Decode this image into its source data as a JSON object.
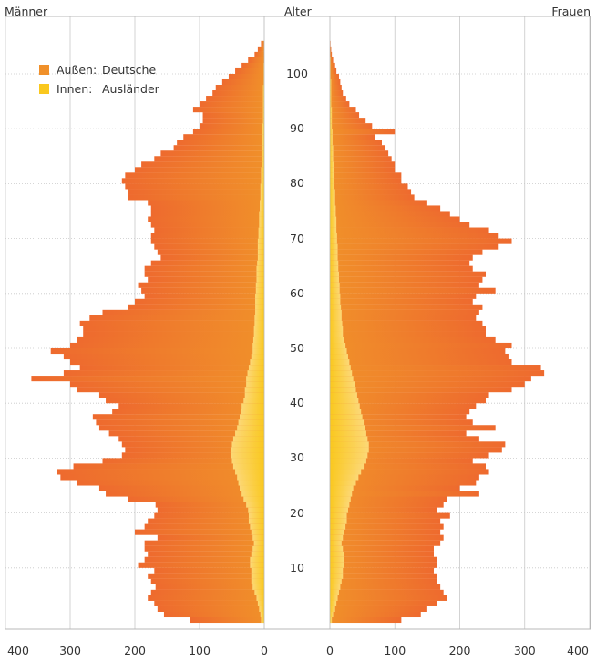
{
  "header": {
    "left_label": "Männer",
    "center_label": "Alter",
    "right_label": "Frauen"
  },
  "legend": {
    "outer_label": "Außen:",
    "outer_name": "Deutsche",
    "inner_label": "Innen:",
    "inner_name": "Ausländer"
  },
  "colors": {
    "deutsche": "#f0902a",
    "deutsche_dark": "#ee6a2e",
    "auslaender": "#fac81e",
    "auslaender_light": "#fcd877",
    "grid": "#c8c8c8",
    "frame": "#b8b8b8"
  },
  "chart_data": {
    "type": "bar",
    "subtype": "population-pyramid",
    "ylabel": "Alter",
    "xlim": [
      0,
      400
    ],
    "ages": [
      1,
      2,
      3,
      4,
      5,
      6,
      7,
      8,
      9,
      10,
      11,
      12,
      13,
      14,
      15,
      16,
      17,
      18,
      19,
      20,
      21,
      22,
      23,
      24,
      25,
      26,
      27,
      28,
      29,
      30,
      31,
      32,
      33,
      34,
      35,
      36,
      37,
      38,
      39,
      40,
      41,
      42,
      43,
      44,
      45,
      46,
      47,
      48,
      49,
      50,
      51,
      52,
      53,
      54,
      55,
      56,
      57,
      58,
      59,
      60,
      61,
      62,
      63,
      64,
      65,
      66,
      67,
      68,
      69,
      70,
      71,
      72,
      73,
      74,
      75,
      76,
      77,
      78,
      79,
      80,
      81,
      82,
      83,
      84,
      85,
      86,
      87,
      88,
      89,
      90,
      91,
      92,
      93,
      94,
      95,
      96,
      97,
      98,
      99,
      100,
      101,
      102,
      103,
      104,
      105,
      106
    ],
    "age_ticks": [
      10,
      20,
      30,
      40,
      50,
      60,
      70,
      80,
      90,
      100
    ],
    "x_ticks_men": [
      400,
      300,
      200,
      100,
      0
    ],
    "x_ticks_women": [
      0,
      100,
      200,
      300,
      400
    ],
    "series": [
      {
        "name": "Deutsche",
        "group": "Männer",
        "values": [
          115,
          155,
          165,
          170,
          180,
          175,
          168,
          175,
          180,
          170,
          195,
          185,
          180,
          185,
          185,
          165,
          200,
          185,
          180,
          170,
          165,
          168,
          210,
          245,
          255,
          290,
          315,
          320,
          295,
          250,
          220,
          215,
          220,
          225,
          240,
          255,
          260,
          265,
          235,
          225,
          245,
          255,
          290,
          300,
          360,
          310,
          285,
          300,
          310,
          330,
          300,
          290,
          280,
          280,
          285,
          270,
          250,
          210,
          200,
          185,
          190,
          195,
          180,
          185,
          185,
          175,
          160,
          165,
          170,
          175,
          175,
          170,
          175,
          180,
          175,
          175,
          180,
          210,
          210,
          215,
          220,
          215,
          200,
          190,
          170,
          160,
          140,
          135,
          125,
          110,
          100,
          95,
          95,
          110,
          100,
          90,
          80,
          75,
          65,
          55,
          45,
          35,
          25,
          15,
          10,
          5
        ]
      },
      {
        "name": "Ausländer",
        "group": "Männer",
        "values": [
          5,
          6,
          8,
          10,
          12,
          15,
          18,
          20,
          20,
          20,
          22,
          22,
          20,
          18,
          16,
          18,
          20,
          22,
          24,
          24,
          25,
          28,
          32,
          35,
          38,
          40,
          42,
          45,
          48,
          50,
          52,
          52,
          50,
          48,
          45,
          42,
          40,
          38,
          36,
          35,
          32,
          30,
          30,
          28,
          28,
          26,
          24,
          22,
          20,
          18,
          18,
          17,
          16,
          16,
          15,
          15,
          14,
          14,
          14,
          14,
          13,
          13,
          12,
          12,
          12,
          11,
          10,
          10,
          10,
          10,
          9,
          9,
          8,
          8,
          8,
          7,
          7,
          6,
          6,
          6,
          5,
          5,
          5,
          4,
          4,
          4,
          3,
          3,
          3,
          3,
          3,
          2,
          2,
          2,
          2,
          2,
          2,
          2,
          1,
          1,
          1,
          1,
          0,
          0,
          0,
          0
        ]
      },
      {
        "name": "Deutsche",
        "group": "Frauen",
        "values": [
          110,
          140,
          150,
          165,
          180,
          175,
          170,
          165,
          165,
          160,
          165,
          165,
          160,
          160,
          170,
          175,
          170,
          175,
          170,
          185,
          165,
          175,
          180,
          230,
          200,
          225,
          230,
          245,
          240,
          220,
          245,
          265,
          270,
          230,
          210,
          255,
          220,
          210,
          215,
          225,
          240,
          245,
          280,
          300,
          310,
          330,
          325,
          280,
          275,
          270,
          280,
          255,
          240,
          240,
          235,
          225,
          230,
          235,
          220,
          225,
          255,
          230,
          235,
          240,
          220,
          215,
          220,
          235,
          260,
          280,
          260,
          245,
          215,
          200,
          185,
          170,
          150,
          130,
          125,
          120,
          110,
          110,
          100,
          100,
          95,
          90,
          85,
          80,
          70,
          100,
          65,
          55,
          45,
          40,
          30,
          25,
          20,
          18,
          16,
          14,
          10,
          8,
          5,
          3,
          2,
          1
        ]
      },
      {
        "name": "Ausländer",
        "group": "Frauen",
        "values": [
          3,
          5,
          8,
          10,
          12,
          14,
          16,
          18,
          20,
          20,
          22,
          22,
          22,
          20,
          18,
          20,
          22,
          24,
          26,
          26,
          28,
          30,
          32,
          34,
          36,
          40,
          44,
          48,
          52,
          56,
          58,
          60,
          60,
          58,
          56,
          54,
          52,
          50,
          48,
          46,
          44,
          42,
          40,
          38,
          36,
          34,
          32,
          30,
          28,
          26,
          24,
          22,
          20,
          20,
          19,
          18,
          18,
          17,
          16,
          16,
          15,
          15,
          14,
          14,
          13,
          13,
          12,
          12,
          12,
          11,
          11,
          10,
          10,
          10,
          9,
          9,
          8,
          8,
          8,
          7,
          7,
          6,
          6,
          6,
          5,
          5,
          5,
          4,
          4,
          4,
          3,
          3,
          3,
          3,
          2,
          2,
          2,
          2,
          2,
          1,
          1,
          1,
          1,
          0,
          0,
          0
        ]
      }
    ],
    "legend_position": "top-left",
    "grid": true
  }
}
